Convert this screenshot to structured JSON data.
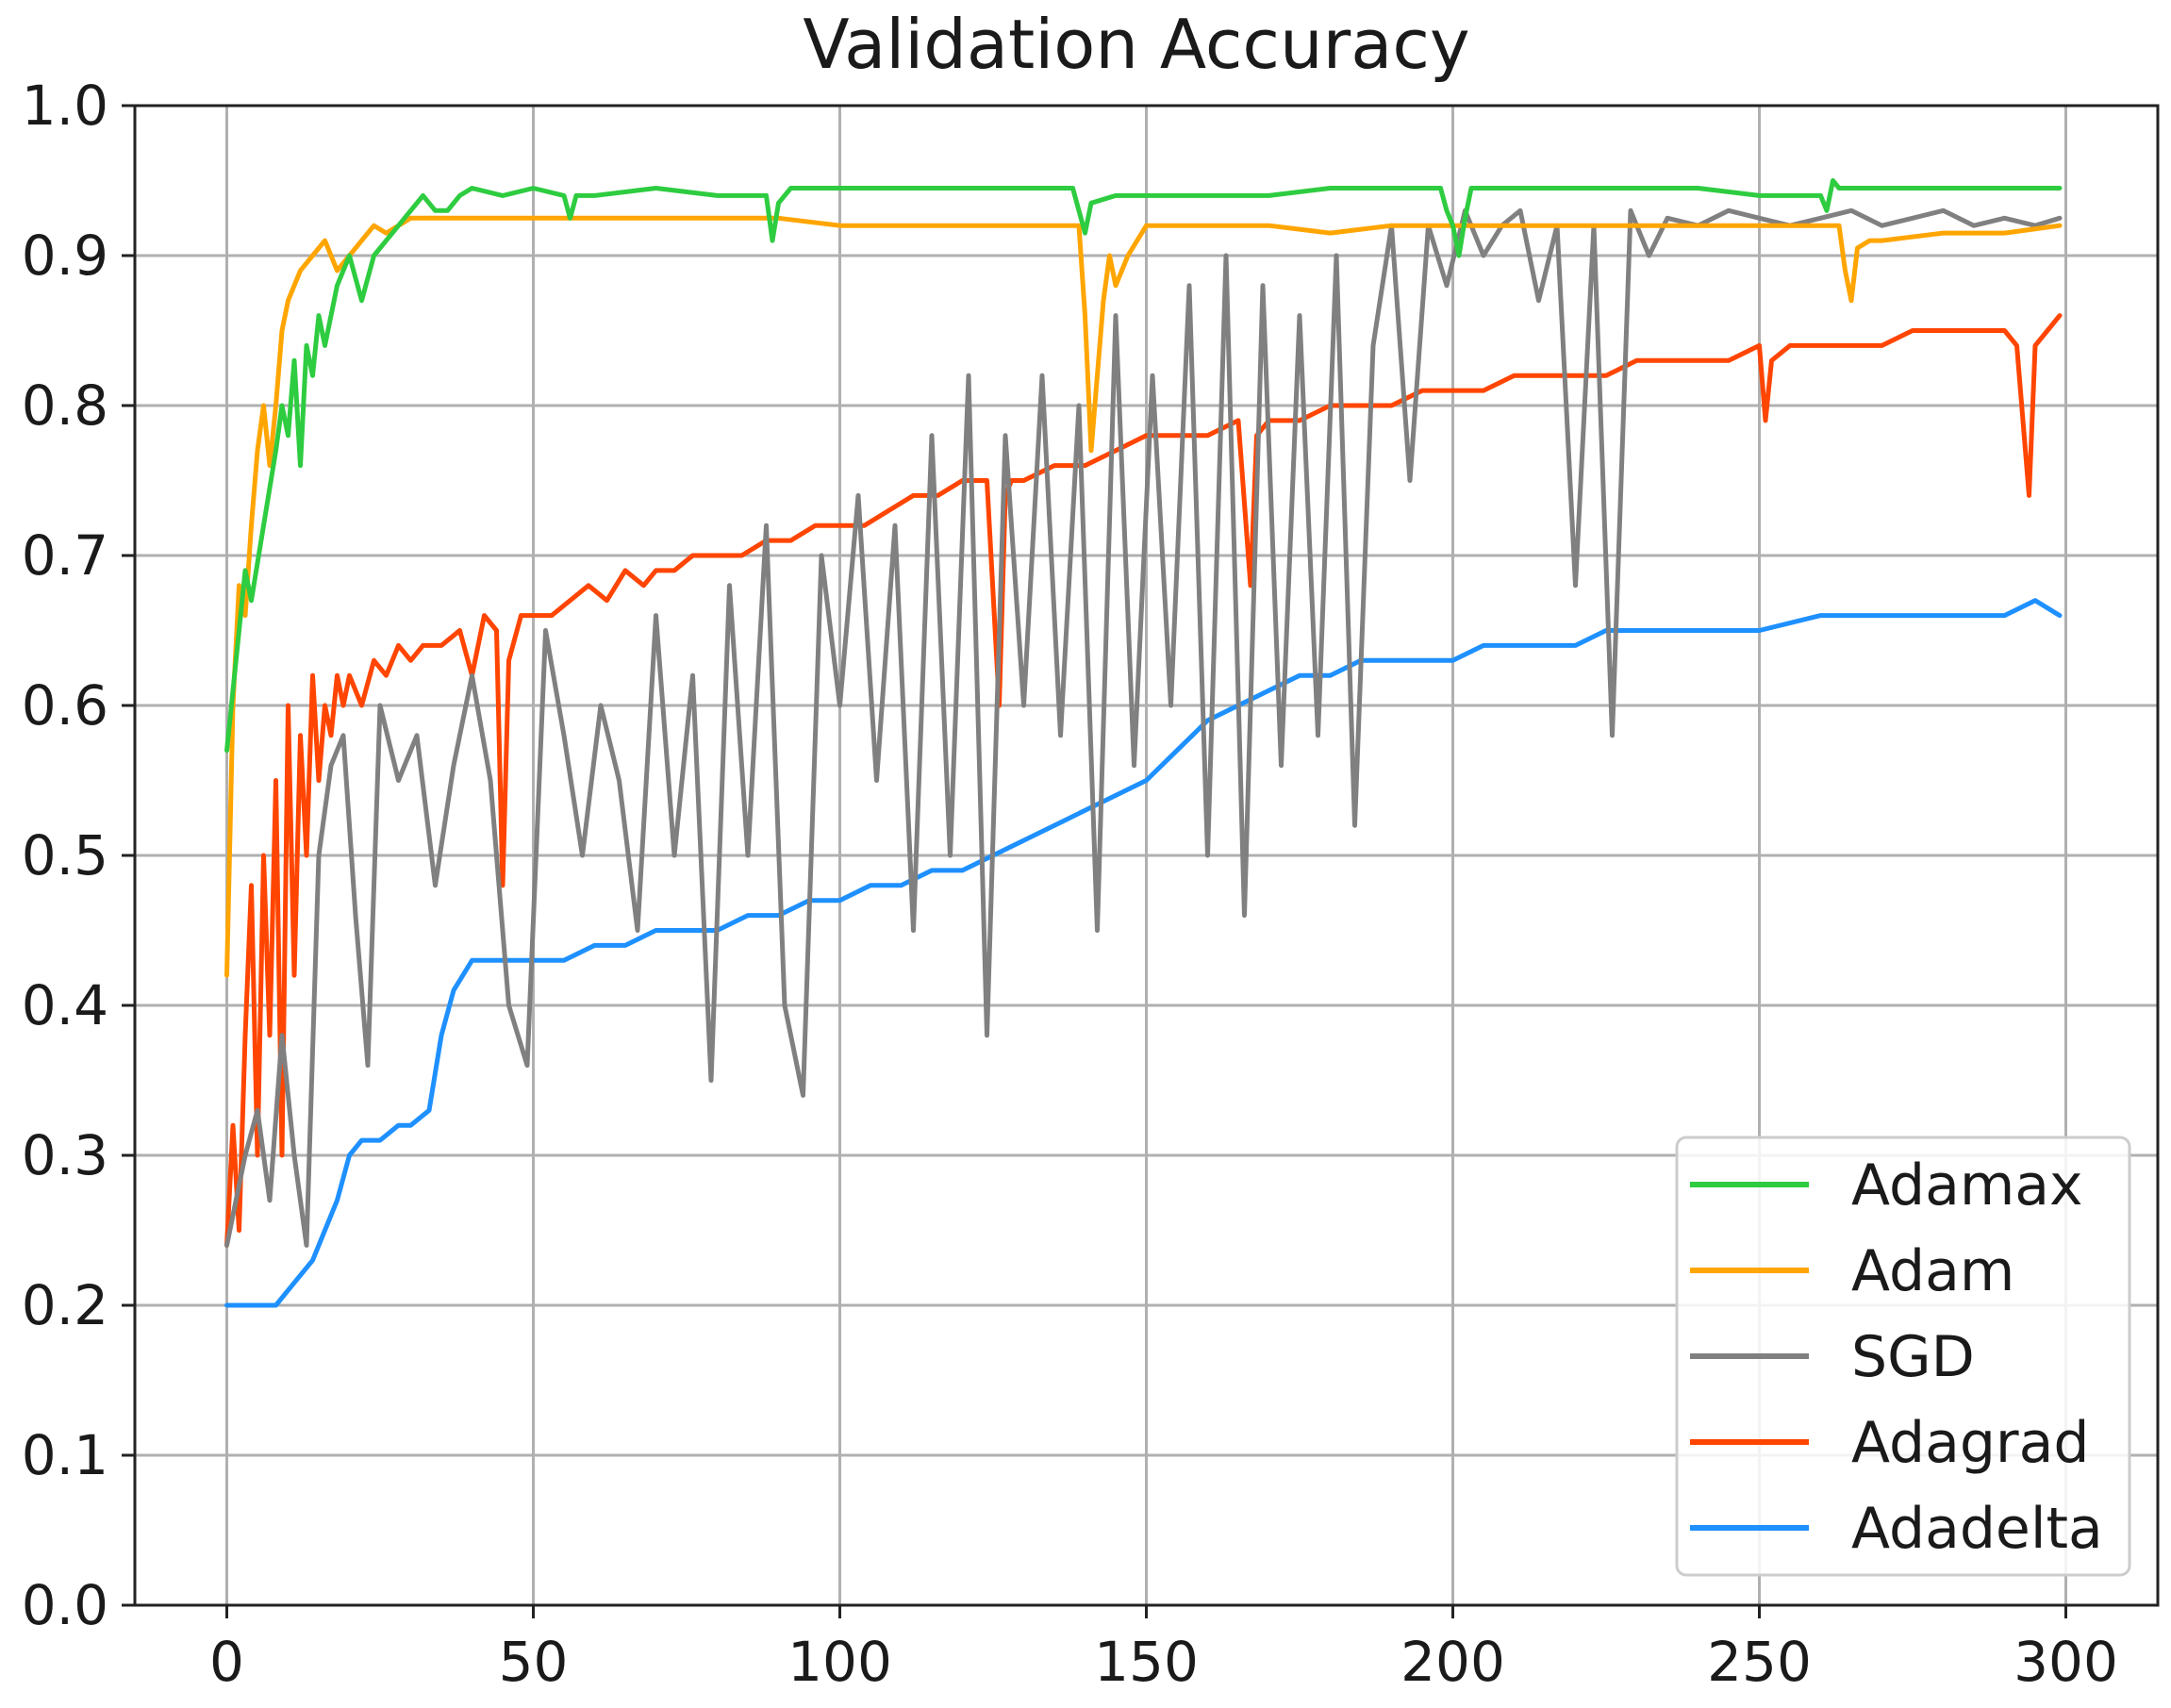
{
  "chart_data": {
    "type": "line",
    "title": "Validation Accuracy",
    "xlabel": "",
    "ylabel": "",
    "xlim": [
      -15,
      315
    ],
    "ylim": [
      0.0,
      1.0
    ],
    "xticks": [
      0,
      50,
      100,
      150,
      200,
      250,
      300
    ],
    "yticks": [
      0.0,
      0.1,
      0.2,
      0.3,
      0.4,
      0.5,
      0.6,
      0.7,
      0.8,
      0.9,
      1.0
    ],
    "xtick_labels": [
      "0",
      "50",
      "100",
      "150",
      "200",
      "250",
      "300"
    ],
    "ytick_labels": [
      "0.0",
      "0.1",
      "0.2",
      "0.3",
      "0.4",
      "0.5",
      "0.6",
      "0.7",
      "0.8",
      "0.9",
      "1.0"
    ],
    "grid": true,
    "legend_position": "lower-right",
    "series": [
      {
        "name": "Adamax",
        "color": "#2ecc40",
        "x": [
          0,
          2,
          3,
          4,
          6,
          8,
          9,
          10,
          11,
          12,
          13,
          14,
          15,
          16,
          18,
          20,
          22,
          24,
          26,
          28,
          30,
          32,
          34,
          36,
          38,
          40,
          45,
          50,
          55,
          56,
          57,
          60,
          70,
          80,
          88,
          89,
          90,
          92,
          100,
          110,
          120,
          130,
          138,
          139,
          140,
          141,
          145,
          150,
          160,
          170,
          180,
          190,
          198,
          199,
          200,
          201,
          202,
          203,
          205,
          210,
          220,
          230,
          240,
          250,
          260,
          261,
          262,
          263,
          265,
          270,
          280,
          290,
          299
        ],
        "y": [
          0.57,
          0.65,
          0.69,
          0.67,
          0.72,
          0.77,
          0.8,
          0.78,
          0.83,
          0.76,
          0.84,
          0.82,
          0.86,
          0.84,
          0.88,
          0.9,
          0.87,
          0.9,
          0.91,
          0.92,
          0.93,
          0.94,
          0.93,
          0.93,
          0.94,
          0.945,
          0.94,
          0.945,
          0.94,
          0.925,
          0.94,
          0.94,
          0.945,
          0.94,
          0.94,
          0.91,
          0.935,
          0.945,
          0.945,
          0.945,
          0.945,
          0.945,
          0.945,
          0.93,
          0.915,
          0.935,
          0.94,
          0.94,
          0.94,
          0.94,
          0.945,
          0.945,
          0.945,
          0.93,
          0.92,
          0.9,
          0.925,
          0.945,
          0.945,
          0.945,
          0.945,
          0.945,
          0.945,
          0.94,
          0.94,
          0.93,
          0.95,
          0.945,
          0.945,
          0.945,
          0.945,
          0.945,
          0.945
        ]
      },
      {
        "name": "Adam",
        "color": "#ffa500",
        "x": [
          0,
          1,
          2,
          3,
          4,
          5,
          6,
          7,
          8,
          9,
          10,
          12,
          14,
          16,
          18,
          20,
          22,
          24,
          26,
          28,
          30,
          35,
          40,
          50,
          60,
          70,
          80,
          90,
          100,
          110,
          120,
          130,
          139,
          140,
          141,
          142,
          143,
          144,
          145,
          147,
          150,
          160,
          170,
          180,
          190,
          200,
          210,
          220,
          230,
          240,
          250,
          260,
          263,
          264,
          265,
          266,
          268,
          270,
          280,
          290,
          299
        ],
        "y": [
          0.42,
          0.6,
          0.68,
          0.66,
          0.72,
          0.77,
          0.8,
          0.76,
          0.8,
          0.85,
          0.87,
          0.89,
          0.9,
          0.91,
          0.89,
          0.9,
          0.91,
          0.92,
          0.915,
          0.92,
          0.925,
          0.925,
          0.925,
          0.925,
          0.925,
          0.925,
          0.925,
          0.925,
          0.92,
          0.92,
          0.92,
          0.92,
          0.92,
          0.86,
          0.77,
          0.82,
          0.87,
          0.9,
          0.88,
          0.9,
          0.92,
          0.92,
          0.92,
          0.915,
          0.92,
          0.92,
          0.92,
          0.92,
          0.92,
          0.92,
          0.92,
          0.92,
          0.92,
          0.89,
          0.87,
          0.905,
          0.91,
          0.91,
          0.915,
          0.915,
          0.92
        ]
      },
      {
        "name": "SGD",
        "color": "#808080",
        "x": [
          0,
          3,
          5,
          7,
          9,
          11,
          13,
          15,
          17,
          19,
          21,
          23,
          25,
          28,
          31,
          34,
          37,
          40,
          43,
          46,
          49,
          52,
          55,
          58,
          61,
          64,
          67,
          70,
          73,
          76,
          79,
          82,
          85,
          88,
          91,
          94,
          97,
          100,
          103,
          106,
          109,
          112,
          115,
          118,
          121,
          124,
          127,
          130,
          133,
          136,
          139,
          142,
          145,
          148,
          151,
          154,
          157,
          160,
          163,
          166,
          169,
          172,
          175,
          178,
          181,
          184,
          187,
          190,
          193,
          196,
          199,
          202,
          205,
          208,
          211,
          214,
          217,
          220,
          223,
          226,
          229,
          232,
          235,
          240,
          245,
          250,
          255,
          260,
          265,
          270,
          275,
          280,
          285,
          290,
          295,
          299
        ],
        "y": [
          0.24,
          0.3,
          0.33,
          0.27,
          0.38,
          0.3,
          0.24,
          0.5,
          0.56,
          0.58,
          0.46,
          0.36,
          0.6,
          0.55,
          0.58,
          0.48,
          0.56,
          0.62,
          0.55,
          0.4,
          0.36,
          0.65,
          0.58,
          0.5,
          0.6,
          0.55,
          0.45,
          0.66,
          0.5,
          0.62,
          0.35,
          0.68,
          0.5,
          0.72,
          0.4,
          0.34,
          0.7,
          0.6,
          0.74,
          0.55,
          0.72,
          0.45,
          0.78,
          0.5,
          0.82,
          0.38,
          0.78,
          0.6,
          0.82,
          0.58,
          0.8,
          0.45,
          0.86,
          0.56,
          0.82,
          0.6,
          0.88,
          0.5,
          0.9,
          0.46,
          0.88,
          0.56,
          0.86,
          0.58,
          0.9,
          0.52,
          0.84,
          0.92,
          0.75,
          0.92,
          0.88,
          0.93,
          0.9,
          0.92,
          0.93,
          0.87,
          0.92,
          0.68,
          0.92,
          0.58,
          0.93,
          0.9,
          0.925,
          0.92,
          0.93,
          0.925,
          0.92,
          0.925,
          0.93,
          0.92,
          0.925,
          0.93,
          0.92,
          0.925,
          0.92,
          0.925
        ]
      },
      {
        "name": "Adagrad",
        "color": "#ff4500",
        "x": [
          0,
          1,
          2,
          3,
          4,
          5,
          6,
          7,
          8,
          9,
          10,
          11,
          12,
          13,
          14,
          15,
          16,
          17,
          18,
          19,
          20,
          22,
          24,
          26,
          28,
          30,
          32,
          35,
          38,
          40,
          42,
          44,
          45,
          46,
          48,
          50,
          53,
          56,
          59,
          62,
          65,
          68,
          70,
          73,
          76,
          80,
          84,
          88,
          92,
          96,
          100,
          104,
          108,
          112,
          116,
          120,
          124,
          126,
          127,
          128,
          130,
          135,
          140,
          145,
          150,
          155,
          160,
          165,
          167,
          168,
          170,
          175,
          180,
          185,
          190,
          195,
          200,
          205,
          210,
          215,
          220,
          225,
          230,
          235,
          240,
          245,
          250,
          251,
          252,
          255,
          260,
          265,
          270,
          275,
          280,
          285,
          290,
          292,
          293,
          294,
          295,
          297,
          299
        ],
        "y": [
          0.24,
          0.32,
          0.25,
          0.38,
          0.48,
          0.3,
          0.5,
          0.38,
          0.55,
          0.3,
          0.6,
          0.42,
          0.58,
          0.5,
          0.62,
          0.55,
          0.6,
          0.58,
          0.62,
          0.6,
          0.62,
          0.6,
          0.63,
          0.62,
          0.64,
          0.63,
          0.64,
          0.64,
          0.65,
          0.62,
          0.66,
          0.65,
          0.48,
          0.63,
          0.66,
          0.66,
          0.66,
          0.67,
          0.68,
          0.67,
          0.69,
          0.68,
          0.69,
          0.69,
          0.7,
          0.7,
          0.7,
          0.71,
          0.71,
          0.72,
          0.72,
          0.72,
          0.73,
          0.74,
          0.74,
          0.75,
          0.75,
          0.6,
          0.74,
          0.75,
          0.75,
          0.76,
          0.76,
          0.77,
          0.78,
          0.78,
          0.78,
          0.79,
          0.68,
          0.78,
          0.79,
          0.79,
          0.8,
          0.8,
          0.8,
          0.81,
          0.81,
          0.81,
          0.82,
          0.82,
          0.82,
          0.82,
          0.83,
          0.83,
          0.83,
          0.83,
          0.84,
          0.79,
          0.83,
          0.84,
          0.84,
          0.84,
          0.84,
          0.85,
          0.85,
          0.85,
          0.85,
          0.84,
          0.79,
          0.74,
          0.84,
          0.85,
          0.86
        ]
      },
      {
        "name": "Adadelta",
        "color": "#1e90ff",
        "x": [
          0,
          4,
          8,
          10,
          12,
          14,
          16,
          18,
          20,
          22,
          25,
          28,
          30,
          33,
          35,
          37,
          40,
          45,
          50,
          55,
          60,
          65,
          70,
          75,
          80,
          85,
          90,
          95,
          100,
          105,
          110,
          115,
          120,
          125,
          130,
          135,
          140,
          145,
          150,
          155,
          160,
          165,
          170,
          175,
          180,
          185,
          190,
          195,
          200,
          205,
          210,
          215,
          220,
          225,
          230,
          240,
          250,
          260,
          270,
          280,
          290,
          295,
          299
        ],
        "y": [
          0.2,
          0.2,
          0.2,
          0.21,
          0.22,
          0.23,
          0.25,
          0.27,
          0.3,
          0.31,
          0.31,
          0.32,
          0.32,
          0.33,
          0.38,
          0.41,
          0.43,
          0.43,
          0.43,
          0.43,
          0.44,
          0.44,
          0.45,
          0.45,
          0.45,
          0.46,
          0.46,
          0.47,
          0.47,
          0.48,
          0.48,
          0.49,
          0.49,
          0.5,
          0.51,
          0.52,
          0.53,
          0.54,
          0.55,
          0.57,
          0.59,
          0.6,
          0.61,
          0.62,
          0.62,
          0.63,
          0.63,
          0.63,
          0.63,
          0.64,
          0.64,
          0.64,
          0.64,
          0.65,
          0.65,
          0.65,
          0.65,
          0.66,
          0.66,
          0.66,
          0.66,
          0.67,
          0.66
        ]
      }
    ]
  }
}
